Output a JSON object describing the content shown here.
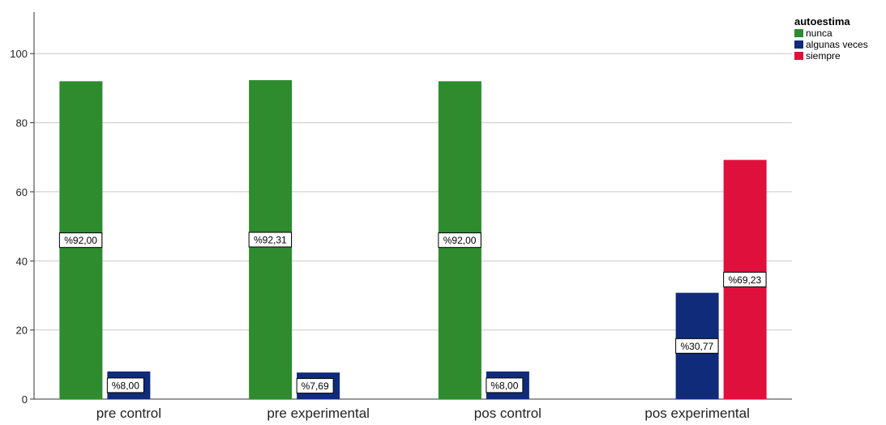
{
  "chart_data": {
    "type": "bar",
    "categories": [
      "pre control",
      "pre experimental",
      "pos control",
      "pos experimental"
    ],
    "series": [
      {
        "name": "nunca",
        "color": "#2e8b2e",
        "values": [
          92.0,
          92.31,
          92.0,
          null
        ]
      },
      {
        "name": "algunas veces",
        "color": "#0f2b7a",
        "values": [
          8.0,
          7.69,
          8.0,
          30.77
        ]
      },
      {
        "name": "siempre",
        "color": "#e0103c",
        "values": [
          null,
          null,
          null,
          69.23
        ]
      }
    ],
    "data_labels": [
      [
        "%92,00",
        "%92,31",
        "%92,00",
        null
      ],
      [
        "%8,00",
        "%7,69",
        "%8,00",
        "%30,77"
      ],
      [
        null,
        null,
        null,
        "%69,23"
      ]
    ],
    "yticks": [
      "0",
      "20",
      "40",
      "60",
      "80",
      "100"
    ],
    "ylim": [
      0,
      112
    ],
    "grid": true,
    "legend_title": "autoestima",
    "legend_position": "top-right"
  }
}
